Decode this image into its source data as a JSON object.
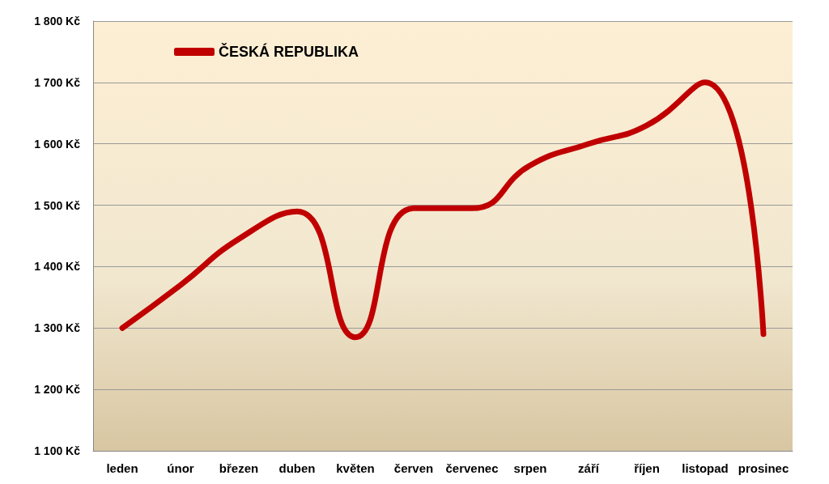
{
  "chart_data": {
    "type": "line",
    "categories": [
      "leden",
      "únor",
      "březen",
      "duben",
      "květen",
      "červen",
      "červenec",
      "srpen",
      "září",
      "říjen",
      "listopad",
      "prosinec"
    ],
    "series": [
      {
        "name": "ČESKÁ REPUBLIKA",
        "color": "#c00000",
        "values": [
          1300,
          1370,
          1445,
          1490,
          1285,
          1495,
          1495,
          1565,
          1600,
          1630,
          1700,
          1290
        ]
      }
    ],
    "ylim": [
      1100,
      1800
    ],
    "yticks": [
      {
        "value": 1100,
        "label": "1 100 Kč"
      },
      {
        "value": 1200,
        "label": "1 200 Kč"
      },
      {
        "value": 1300,
        "label": "1 300 Kč"
      },
      {
        "value": 1400,
        "label": "1 400 Kč"
      },
      {
        "value": 1500,
        "label": "1 500 Kč"
      },
      {
        "value": 1600,
        "label": "1 600 Kč"
      },
      {
        "value": 1700,
        "label": "1 700 Kč"
      },
      {
        "value": 1800,
        "label": "1 800 Kč"
      }
    ],
    "grid": "y",
    "legend": "top left",
    "marker": "none",
    "line_style": "solid"
  }
}
